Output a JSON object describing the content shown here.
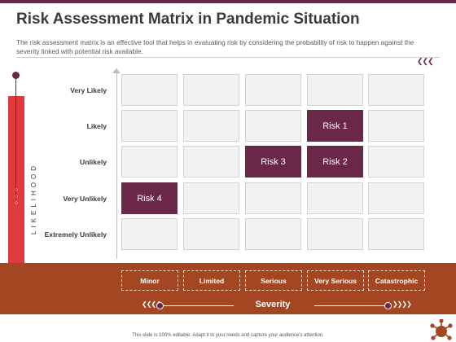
{
  "title": "Risk Assessment Matrix in Pandemic Situation",
  "description": "The risk assessment matrix is an effective tool that helps in evaluating risk by considering the probability of risk to happen against the severity linked with potential risk available.",
  "likelihood_label": "LIKELIHOOD",
  "severity_label": "Severity",
  "row_labels": [
    "Very Likely",
    "Likely",
    "Unlikely",
    "Very Unlikely",
    "Extremely Unlikely"
  ],
  "column_labels": [
    "Minor",
    "Limited",
    "Serious",
    "Very Serious",
    "Catastrophic"
  ],
  "risks": [
    {
      "label": "Risk 1",
      "row": "Likely",
      "column": "Very Serious"
    },
    {
      "label": "Risk 3",
      "row": "Unlikely",
      "column": "Serious"
    },
    {
      "label": "Risk 2",
      "row": "Unlikely",
      "column": "Very Serious"
    },
    {
      "label": "Risk 4",
      "row": "Very Unlikely",
      "column": "Minor"
    }
  ],
  "footer": "This slide is 100% editable. Adapt it to your needs and capture your audience's attention.",
  "colors": {
    "accent": "#6b2748",
    "band": "#a54622",
    "bar": "#e03a3e",
    "cell": "#f2f2f2"
  },
  "icons": {
    "top_arrows": "double-chevron-left-icon",
    "left_arrows": "double-chevron-left-icon",
    "right_arrows": "double-chevron-right-icon",
    "corner": "virus-icon"
  }
}
